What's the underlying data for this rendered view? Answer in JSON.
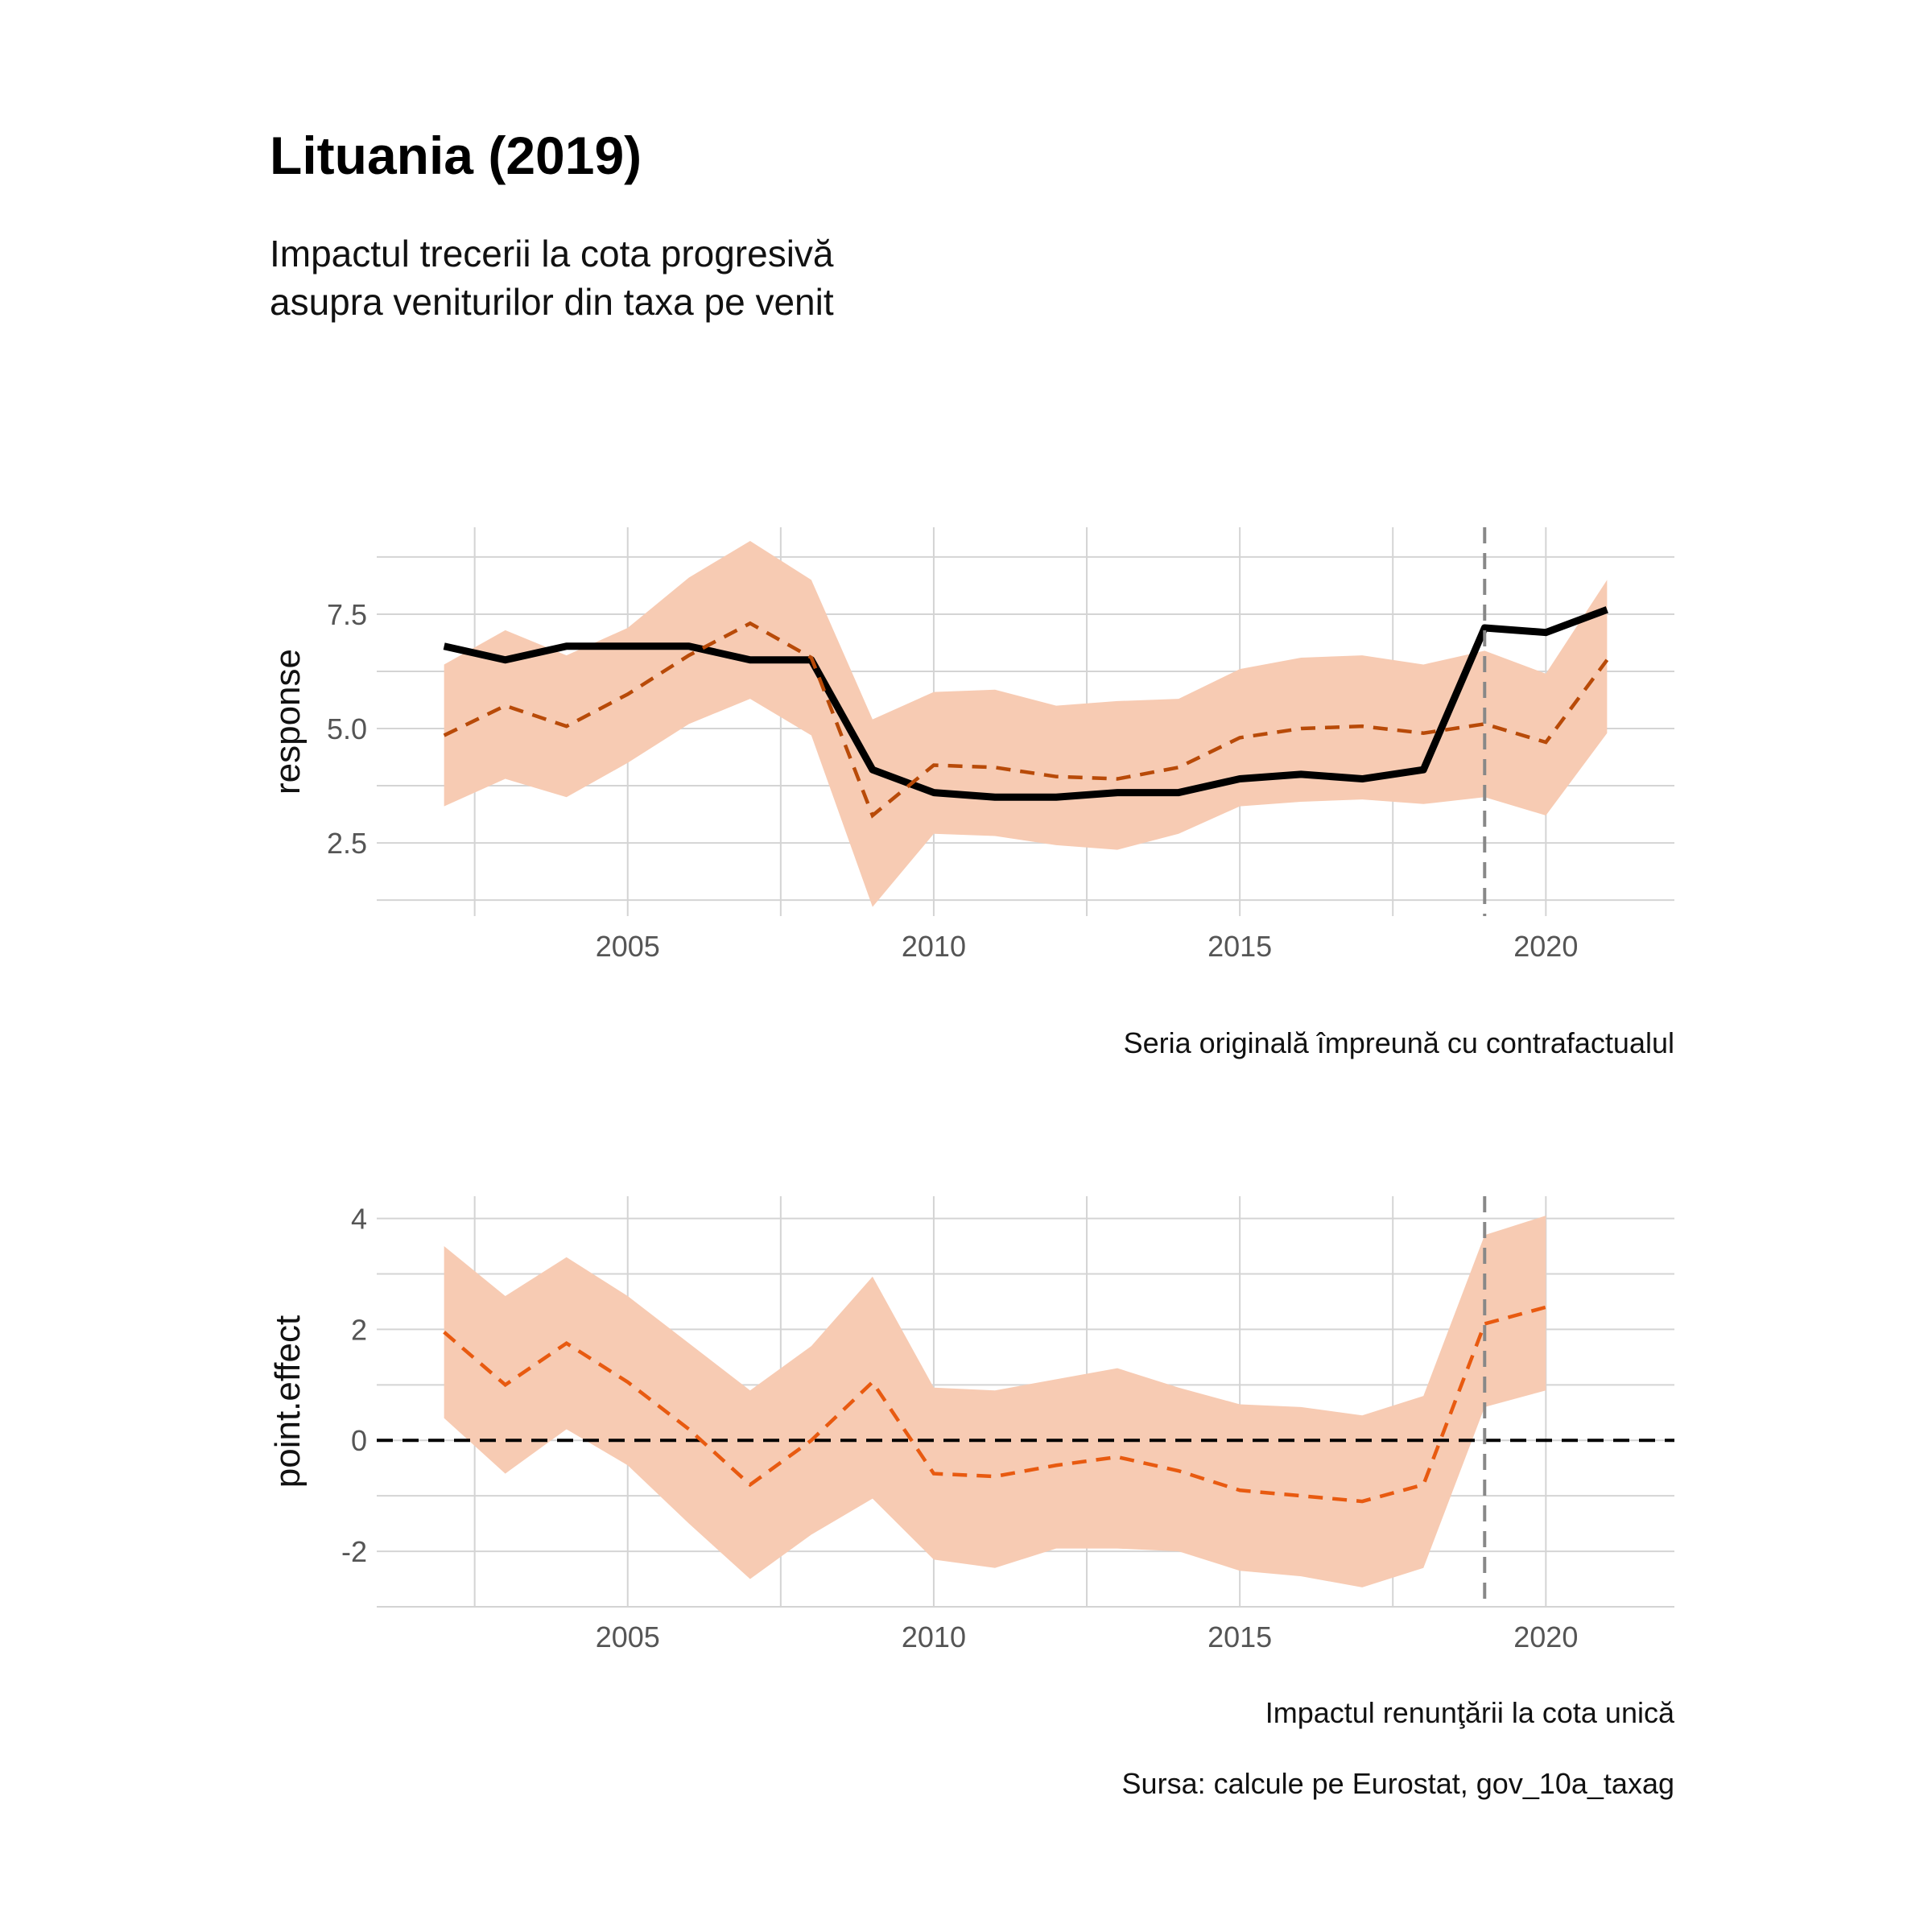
{
  "title": "Lituania (2019)",
  "subtitle_lines": [
    "Impactul trecerii la cota progresivă",
    "asupra veniturilor din taxa pe venit"
  ],
  "source": "Sursa: calcule pe Eurostat, gov_10a_taxag",
  "colors": {
    "band": "#f7cbb3",
    "original": "#000000",
    "counterfactual": "#b84a08",
    "effect": "#e85a10",
    "intervention": "#888888",
    "zero": "#000000"
  },
  "chart_data": [
    {
      "type": "line",
      "panel": "top",
      "ylabel": "response",
      "caption": "Seria originală împreună cu contrafactualul",
      "xlim": [
        2000.9,
        2022.1
      ],
      "ylim": [
        0.9,
        9.4
      ],
      "x_ticks": [
        2005,
        2010,
        2015,
        2020
      ],
      "y_ticks": [
        2.5,
        5.0,
        7.5
      ],
      "y_tick_labels": [
        "2.5",
        "5.0",
        "7.5"
      ],
      "intervention_x": 2019,
      "x": [
        2002,
        2003,
        2004,
        2005,
        2006,
        2007,
        2008,
        2009,
        2010,
        2011,
        2012,
        2013,
        2014,
        2015,
        2016,
        2017,
        2018,
        2019,
        2020,
        2021
      ],
      "series": [
        {
          "role": "original",
          "style": "solid",
          "values": [
            6.8,
            6.5,
            6.8,
            6.8,
            6.8,
            6.5,
            6.5,
            4.1,
            3.6,
            3.5,
            3.5,
            3.6,
            3.6,
            3.9,
            4.0,
            3.9,
            4.1,
            7.2,
            7.1,
            7.6
          ]
        },
        {
          "role": "counterfactual",
          "style": "dashed",
          "values": [
            4.85,
            5.5,
            5.05,
            5.75,
            6.6,
            7.3,
            6.55,
            3.1,
            4.2,
            4.15,
            3.95,
            3.9,
            4.15,
            4.8,
            5.0,
            5.05,
            4.9,
            5.1,
            4.7,
            6.5
          ]
        },
        {
          "role": "band_upper",
          "values": [
            6.4,
            7.15,
            6.6,
            7.2,
            8.3,
            9.1,
            8.25,
            5.2,
            5.8,
            5.85,
            5.5,
            5.6,
            5.65,
            6.3,
            6.55,
            6.6,
            6.4,
            6.7,
            6.2,
            8.25
          ]
        },
        {
          "role": "band_lower",
          "values": [
            3.3,
            3.9,
            3.5,
            4.25,
            5.1,
            5.65,
            4.85,
            1.1,
            2.7,
            2.65,
            2.45,
            2.35,
            2.7,
            3.3,
            3.4,
            3.45,
            3.35,
            3.5,
            3.1,
            4.9
          ]
        }
      ]
    },
    {
      "type": "line",
      "panel": "bottom",
      "ylabel": "point.effect",
      "caption": "Impactul renunţării la cota unică",
      "xlim": [
        2000.9,
        2022.1
      ],
      "ylim": [
        -3.0,
        4.4
      ],
      "x_ticks": [
        2005,
        2010,
        2015,
        2020
      ],
      "y_ticks": [
        -2,
        0,
        2,
        4
      ],
      "y_tick_labels": [
        "-2",
        "0",
        "2",
        "4"
      ],
      "intervention_x": 2019,
      "zero_line": 0,
      "x": [
        2002,
        2003,
        2004,
        2005,
        2006,
        2007,
        2008,
        2009,
        2010,
        2011,
        2012,
        2013,
        2014,
        2015,
        2016,
        2017,
        2018,
        2019,
        2020
      ],
      "series": [
        {
          "role": "point_effect",
          "style": "dashed",
          "values": [
            1.95,
            1.0,
            1.75,
            1.05,
            0.2,
            -0.8,
            0.0,
            1.05,
            -0.6,
            -0.65,
            -0.45,
            -0.3,
            -0.55,
            -0.9,
            -1.0,
            -1.1,
            -0.8,
            2.1,
            2.4
          ]
        },
        {
          "role": "band_upper",
          "values": [
            3.5,
            2.6,
            3.3,
            2.6,
            1.75,
            0.9,
            1.7,
            2.95,
            0.95,
            0.9,
            1.1,
            1.3,
            0.95,
            0.65,
            0.6,
            0.45,
            0.8,
            3.7,
            4.05
          ]
        },
        {
          "role": "band_lower",
          "values": [
            0.4,
            -0.6,
            0.2,
            -0.45,
            -1.5,
            -2.5,
            -1.7,
            -1.05,
            -2.15,
            -2.3,
            -1.95,
            -1.95,
            -2.0,
            -2.35,
            -2.45,
            -2.65,
            -2.3,
            0.6,
            0.9
          ]
        }
      ]
    }
  ]
}
